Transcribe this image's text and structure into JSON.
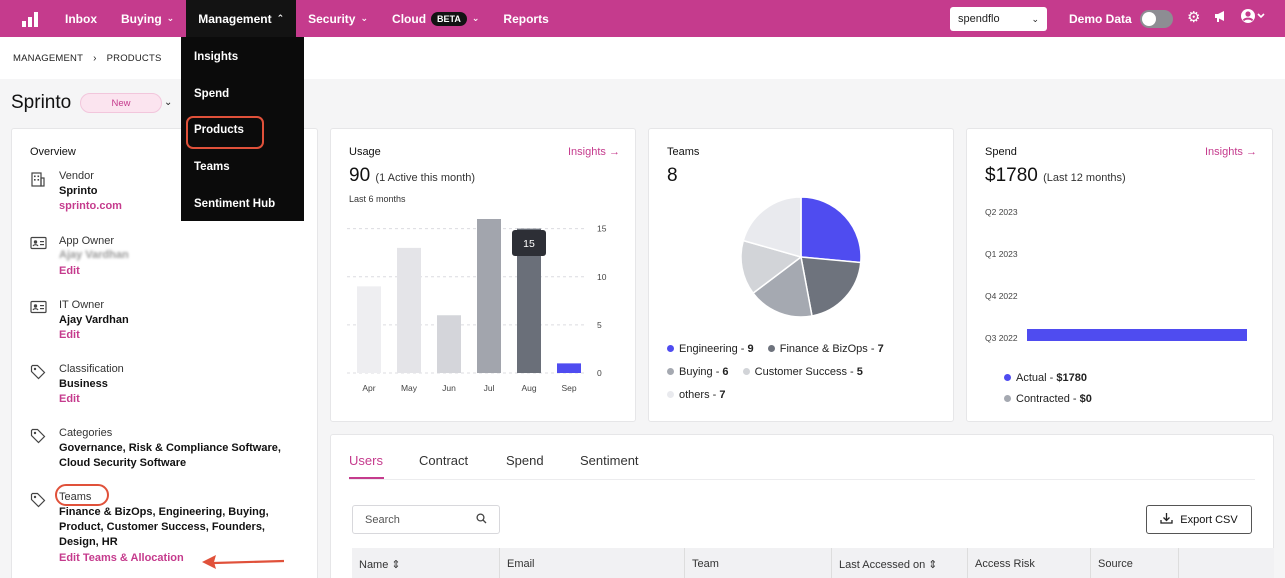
{
  "nav": {
    "items": [
      {
        "label": "Inbox",
        "chevron": false
      },
      {
        "label": "Buying",
        "chevron": true
      },
      {
        "label": "Management",
        "chevron": true,
        "active": true
      },
      {
        "label": "Security",
        "chevron": true
      },
      {
        "label": "Cloud",
        "chevron": true,
        "badge": "BETA"
      },
      {
        "label": "Reports",
        "chevron": false
      }
    ],
    "org_select": "spendflo",
    "demo_label": "Demo Data",
    "accent_color": "#c53b8d"
  },
  "dropdown": {
    "items": [
      "Insights",
      "Spend",
      "Products",
      "Teams",
      "Sentiment Hub"
    ],
    "highlighted": "Products"
  },
  "breadcrumb": [
    "MANAGEMENT",
    "PRODUCTS"
  ],
  "product": {
    "name": "Sprinto",
    "status": "New"
  },
  "overview": {
    "title": "Overview",
    "vendor": {
      "label": "Vendor",
      "value": "Sprinto",
      "link": "sprinto.com"
    },
    "app_owner": {
      "label": "App Owner",
      "value": "Ajay Vardhan",
      "edit": "Edit"
    },
    "it_owner": {
      "label": "IT Owner",
      "value": "Ajay Vardhan",
      "edit": "Edit"
    },
    "classification": {
      "label": "Classification",
      "value": "Business",
      "edit": "Edit"
    },
    "categories": {
      "label": "Categories",
      "line1": "Governance, Risk & Compliance Software,",
      "line2": "Cloud Security Software"
    },
    "teams": {
      "label": "Teams",
      "line1": "Finance & BizOps, Engineering, Buying,",
      "line2": "Product, Customer Success, Founders,",
      "line3": "Design, HR",
      "edit": "Edit Teams & Allocation"
    }
  },
  "usage": {
    "title": "Usage",
    "link": "Insights →",
    "value": "90",
    "sub": "(1 Active this month)",
    "period": "Last 6 months",
    "tooltip": "15"
  },
  "teams_card": {
    "title": "Teams",
    "value": "8",
    "legend": [
      {
        "name": "Engineering",
        "value": "9",
        "color": "#4f4cf0"
      },
      {
        "name": "Finance & BizOps",
        "value": "7",
        "color": "#6e737d"
      },
      {
        "name": "Buying",
        "value": "6",
        "color": "#a5a9b1"
      },
      {
        "name": "Customer Success",
        "value": "5",
        "color": "#d2d4d8"
      },
      {
        "name": "others",
        "value": "7",
        "color": "#e9eaee"
      }
    ]
  },
  "spend_card": {
    "title": "Spend",
    "link": "Insights →",
    "value": "$1780",
    "sub": "(Last 12 months)",
    "legend": [
      {
        "name": "Actual",
        "value": "$1780",
        "color": "#4f4cf0"
      },
      {
        "name": "Contracted",
        "value": "$0",
        "color": "#a5a9b1"
      }
    ]
  },
  "tabs": [
    "Users",
    "Contract",
    "Spend",
    "Sentiment"
  ],
  "active_tab": "Users",
  "search": {
    "placeholder": "Search"
  },
  "export_label": "Export CSV",
  "table_headers": [
    "Name ⇕",
    "Email",
    "Team",
    "Last Accessed on ⇕",
    "Access Risk",
    "Source"
  ],
  "chart_data": [
    {
      "type": "bar",
      "categories": [
        "Apr",
        "May",
        "Jun",
        "Jul",
        "Aug",
        "Sep"
      ],
      "values": [
        9,
        13,
        6,
        16,
        15,
        1
      ],
      "yticks": [
        0,
        5,
        10,
        15
      ],
      "ylim": [
        0,
        16
      ],
      "colors": [
        "#eeeef1",
        "#e4e4e8",
        "#d4d5da",
        "#a2a5ad",
        "#6a6f79",
        "#4f4cf0"
      ]
    },
    {
      "type": "pie",
      "labels": [
        "Engineering",
        "Finance & BizOps",
        "Buying",
        "Customer Success",
        "others"
      ],
      "values": [
        9,
        7,
        6,
        5,
        7
      ]
    },
    {
      "type": "bar",
      "orientation": "horizontal",
      "categories": [
        "Q2 2023",
        "Q1 2023",
        "Q4 2022",
        "Q3 2022"
      ],
      "values": [
        0,
        0,
        0,
        1780
      ]
    }
  ]
}
